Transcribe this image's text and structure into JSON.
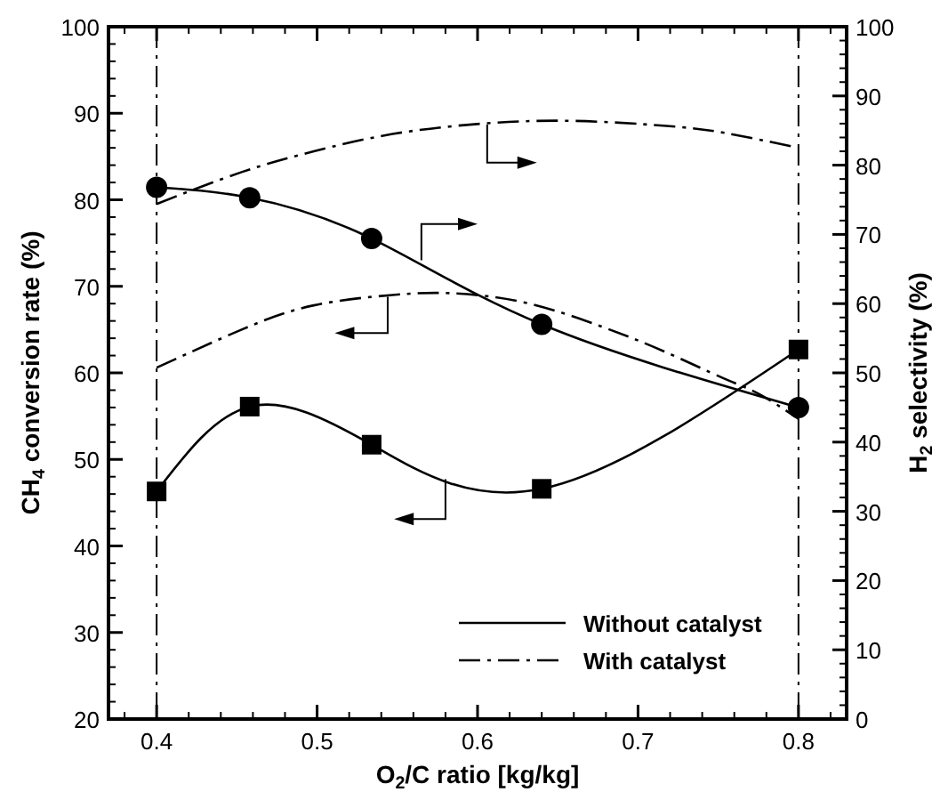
{
  "chart_data": {
    "type": "line",
    "xlabel": "O$_{2}$/C ratio [kg/kg]",
    "ylabel": "CH$_{4}$ conversion rate (%)",
    "y2label": "H$_{2}$ selectivity (%)",
    "xlim": [
      0.37,
      0.83
    ],
    "xticks": [
      {
        "value": 0.38,
        "label": null
      },
      0.4,
      {
        "value": 0.42,
        "label": null
      },
      {
        "value": 0.44,
        "label": null
      },
      {
        "value": 0.46,
        "label": null
      },
      {
        "value": 0.48,
        "label": null
      },
      0.5,
      {
        "value": 0.52,
        "label": null
      },
      {
        "value": 0.54,
        "label": null
      },
      {
        "value": 0.56,
        "label": null
      },
      {
        "value": 0.58,
        "label": null
      },
      0.6,
      {
        "value": 0.62,
        "label": null
      },
      {
        "value": 0.64,
        "label": null
      },
      {
        "value": 0.66,
        "label": null
      },
      {
        "value": 0.68,
        "label": null
      },
      0.7,
      {
        "value": 0.72,
        "label": null
      },
      {
        "value": 0.74,
        "label": null
      },
      {
        "value": 0.76,
        "label": null
      },
      {
        "value": 0.78,
        "label": null
      },
      0.8,
      {
        "value": 0.82,
        "label": null
      }
    ],
    "ylim": [
      20,
      100
    ],
    "yticks": [
      20,
      {
        "value": 22,
        "label": null
      },
      {
        "value": 24,
        "label": null
      },
      {
        "value": 26,
        "label": null
      },
      {
        "value": 28,
        "label": null
      },
      30,
      {
        "value": 32,
        "label": null
      },
      {
        "value": 34,
        "label": null
      },
      {
        "value": 36,
        "label": null
      },
      {
        "value": 38,
        "label": null
      },
      40,
      {
        "value": 42,
        "label": null
      },
      {
        "value": 44,
        "label": null
      },
      {
        "value": 46,
        "label": null
      },
      {
        "value": 48,
        "label": null
      },
      50,
      {
        "value": 52,
        "label": null
      },
      {
        "value": 54,
        "label": null
      },
      {
        "value": 56,
        "label": null
      },
      {
        "value": 58,
        "label": null
      },
      60,
      {
        "value": 62,
        "label": null
      },
      {
        "value": 64,
        "label": null
      },
      {
        "value": 66,
        "label": null
      },
      {
        "value": 68,
        "label": null
      },
      70,
      {
        "value": 72,
        "label": null
      },
      {
        "value": 74,
        "label": null
      },
      {
        "value": 76,
        "label": null
      },
      {
        "value": 78,
        "label": null
      },
      80,
      {
        "value": 82,
        "label": null
      },
      {
        "value": 84,
        "label": null
      },
      {
        "value": 86,
        "label": null
      },
      {
        "value": 88,
        "label": null
      },
      90,
      {
        "value": 92,
        "label": null
      },
      {
        "value": 94,
        "label": null
      },
      {
        "value": 96,
        "label": null
      },
      {
        "value": 98,
        "label": null
      },
      100
    ],
    "y2lim": [
      0,
      100
    ],
    "y2ticks": [
      0,
      {
        "value": 2,
        "label": null
      },
      {
        "value": 4,
        "label": null
      },
      {
        "value": 6,
        "label": null
      },
      {
        "value": 8,
        "label": null
      },
      10,
      {
        "value": 12,
        "label": null
      },
      {
        "value": 14,
        "label": null
      },
      {
        "value": 16,
        "label": null
      },
      {
        "value": 18,
        "label": null
      },
      20,
      {
        "value": 22,
        "label": null
      },
      {
        "value": 24,
        "label": null
      },
      {
        "value": 26,
        "label": null
      },
      {
        "value": 28,
        "label": null
      },
      30,
      {
        "value": 32,
        "label": null
      },
      {
        "value": 34,
        "label": null
      },
      {
        "value": 36,
        "label": null
      },
      {
        "value": 38,
        "label": null
      },
      40,
      {
        "value": 42,
        "label": null
      },
      {
        "value": 44,
        "label": null
      },
      {
        "value": 46,
        "label": null
      },
      {
        "value": 48,
        "label": null
      },
      50,
      {
        "value": 52,
        "label": null
      },
      {
        "value": 54,
        "label": null
      },
      {
        "value": 56,
        "label": null
      },
      {
        "value": 58,
        "label": null
      },
      60,
      {
        "value": 62,
        "label": null
      },
      {
        "value": 64,
        "label": null
      },
      {
        "value": 66,
        "label": null
      },
      {
        "value": 68,
        "label": null
      },
      70,
      {
        "value": 72,
        "label": null
      },
      {
        "value": 74,
        "label": null
      },
      {
        "value": 76,
        "label": null
      },
      {
        "value": 78,
        "label": null
      },
      80,
      {
        "value": 82,
        "label": null
      },
      {
        "value": 84,
        "label": null
      },
      {
        "value": 86,
        "label": null
      },
      {
        "value": 88,
        "label": null
      },
      90,
      {
        "value": 92,
        "label": null
      },
      {
        "value": 94,
        "label": null
      },
      {
        "value": 96,
        "label": null
      },
      {
        "value": 98,
        "label": null
      },
      100
    ],
    "grid": false,
    "legend": "bottom right",
    "ref_lines": [
      {
        "axis": "x",
        "value": 0.4,
        "label": null,
        "color": "#000000",
        "line_style": "dashdot"
      },
      {
        "axis": "x",
        "value": 0.8,
        "label": null,
        "color": "#000000",
        "line_style": "dashdot"
      }
    ],
    "series": [
      {
        "name": "Without catalyst",
        "color": "#000000",
        "marker": "square",
        "line_style": "solid",
        "x": [
          0.4,
          0.458,
          0.534,
          0.64,
          0.8
        ],
        "values": [
          46.3,
          56.1,
          51.7,
          46.6,
          62.7
        ]
      },
      {
        "color": "#000000",
        "marker": "circle",
        "line_style": "solid",
        "axis": "y2",
        "x": [
          0.4,
          0.458,
          0.534,
          0.64,
          0.8
        ],
        "values": [
          76.8,
          75.3,
          69.4,
          57.0,
          45.0
        ]
      },
      {
        "name": "With catalyst",
        "color": "#000000",
        "marker": "none",
        "line_style": "dashdot",
        "x": [
          0.4,
          0.453,
          0.498,
          0.547,
          0.584,
          0.63,
          0.678,
          0.716,
          0.753,
          0.775,
          0.8
        ],
        "values": [
          60.6,
          65.0,
          67.8,
          69.0,
          69.2,
          68.1,
          65.3,
          62.5,
          59.4,
          57.6,
          54.7
        ]
      },
      {
        "color": "#000000",
        "marker": "none",
        "line_style": "dashdot",
        "axis": "y2",
        "x": [
          0.4,
          0.453,
          0.498,
          0.547,
          0.603,
          0.659,
          0.716,
          0.753,
          0.8
        ],
        "values": [
          74.4,
          79.0,
          82.0,
          84.5,
          86.0,
          86.4,
          85.7,
          84.7,
          82.5
        ]
      }
    ]
  }
}
